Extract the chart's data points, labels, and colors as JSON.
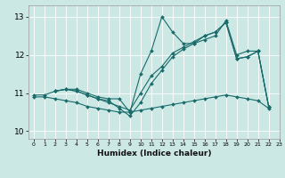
{
  "xlabel": "Humidex (Indice chaleur)",
  "ylabel": "",
  "xlim": [
    -0.5,
    23
  ],
  "ylim": [
    9.8,
    13.3
  ],
  "yticks": [
    10,
    11,
    12,
    13
  ],
  "xticks": [
    0,
    1,
    2,
    3,
    4,
    5,
    6,
    7,
    8,
    9,
    10,
    11,
    12,
    13,
    14,
    15,
    16,
    17,
    18,
    19,
    20,
    21,
    22,
    23
  ],
  "bg_color": "#cce8e4",
  "line_color": "#1a6b6b",
  "lines": [
    {
      "x": [
        0,
        1,
        2,
        3,
        4,
        5,
        6,
        7,
        8,
        9,
        10,
        11,
        12,
        13,
        14,
        15,
        16,
        17,
        18,
        19,
        20,
        21,
        22
      ],
      "y": [
        10.95,
        10.95,
        11.05,
        11.1,
        11.1,
        11.0,
        10.9,
        10.85,
        10.85,
        10.5,
        11.5,
        12.1,
        13.0,
        12.6,
        12.3,
        12.3,
        12.4,
        12.5,
        12.9,
        12.0,
        12.1,
        12.1,
        10.65
      ]
    },
    {
      "x": [
        2,
        3,
        4,
        5,
        6,
        7,
        8,
        9,
        10,
        11,
        12,
        13,
        14,
        15,
        16,
        17,
        18,
        19,
        20,
        21,
        22
      ],
      "y": [
        11.05,
        11.1,
        11.05,
        10.95,
        10.85,
        10.75,
        10.65,
        10.55,
        11.0,
        11.45,
        11.7,
        12.05,
        12.2,
        12.35,
        12.5,
        12.6,
        12.85,
        11.9,
        11.95,
        12.1,
        10.65
      ]
    },
    {
      "x": [
        2,
        3,
        4,
        5,
        6,
        7,
        8,
        9,
        10,
        11,
        12,
        13,
        14,
        15,
        16,
        17,
        18,
        19,
        20,
        21,
        22
      ],
      "y": [
        11.05,
        11.1,
        11.05,
        10.95,
        10.85,
        10.8,
        10.6,
        10.4,
        10.75,
        11.25,
        11.6,
        11.95,
        12.15,
        12.3,
        12.5,
        12.6,
        12.85,
        11.9,
        11.95,
        12.1,
        10.65
      ]
    },
    {
      "x": [
        0,
        1,
        2,
        3,
        4,
        5,
        6,
        7,
        8,
        9,
        10,
        11,
        12,
        13,
        14,
        15,
        16,
        17,
        18,
        19,
        20,
        21,
        22
      ],
      "y": [
        10.9,
        10.9,
        10.85,
        10.8,
        10.75,
        10.65,
        10.6,
        10.55,
        10.5,
        10.5,
        10.55,
        10.6,
        10.65,
        10.7,
        10.75,
        10.8,
        10.85,
        10.9,
        10.95,
        10.9,
        10.85,
        10.8,
        10.6
      ]
    }
  ]
}
